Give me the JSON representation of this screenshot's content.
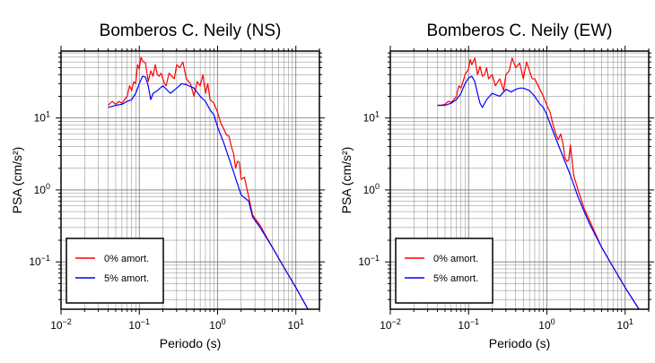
{
  "figure": {
    "background": "#ffffff"
  },
  "chart_data": [
    {
      "type": "line",
      "title": "Bomberos C. Neily (NS)",
      "xlabel": "Periodo (s)",
      "ylabel": "PSA (cm/s²)",
      "xscale": "log",
      "yscale": "log",
      "xlim": [
        0.01,
        20
      ],
      "ylim": [
        0.022,
        85
      ],
      "grid": true,
      "legend": "bottom-left",
      "xticks": [
        {
          "value": 0.01,
          "base": "10",
          "exp": "−2"
        },
        {
          "value": 0.1,
          "base": "10",
          "exp": "−1"
        },
        {
          "value": 1,
          "base": "10",
          "exp": "0"
        },
        {
          "value": 10,
          "base": "10",
          "exp": "1"
        }
      ],
      "yticks": [
        {
          "value": 0.1,
          "base": "10",
          "exp": "−1"
        },
        {
          "value": 1,
          "base": "10",
          "exp": "0"
        },
        {
          "value": 10,
          "base": "10",
          "exp": "1"
        }
      ],
      "series": [
        {
          "name": "0% amort.",
          "color": "#ff0000",
          "x": [
            0.04,
            0.045,
            0.05,
            0.055,
            0.06,
            0.065,
            0.07,
            0.075,
            0.08,
            0.085,
            0.09,
            0.095,
            0.1,
            0.105,
            0.11,
            0.12,
            0.13,
            0.14,
            0.15,
            0.16,
            0.17,
            0.18,
            0.19,
            0.2,
            0.21,
            0.22,
            0.24,
            0.26,
            0.28,
            0.3,
            0.33,
            0.36,
            0.4,
            0.45,
            0.5,
            0.55,
            0.6,
            0.65,
            0.7,
            0.75,
            0.8,
            0.9,
            1.0,
            1.1,
            1.2,
            1.3,
            1.4,
            1.5,
            1.6,
            1.7,
            1.8,
            1.9,
            2.0,
            2.2,
            2.5,
            2.8,
            3.5,
            5,
            7,
            10,
            15
          ],
          "values": [
            15,
            17,
            15.5,
            17,
            16,
            18,
            20,
            28,
            24,
            32,
            30,
            55,
            48,
            70,
            62,
            58,
            32,
            45,
            38,
            55,
            40,
            38,
            42,
            35,
            30,
            28,
            42,
            38,
            35,
            55,
            50,
            60,
            35,
            30,
            20,
            32,
            28,
            40,
            22,
            30,
            18,
            16,
            12,
            8.5,
            7,
            5.8,
            5.6,
            4,
            3.2,
            2,
            2.5,
            2.4,
            1.4,
            1.5,
            0.8,
            0.45,
            0.32,
            0.16,
            0.085,
            0.044,
            0.02
          ]
        },
        {
          "name": "5% amort.",
          "color": "#0000ff",
          "x": [
            0.04,
            0.05,
            0.06,
            0.07,
            0.08,
            0.09,
            0.1,
            0.11,
            0.12,
            0.13,
            0.14,
            0.15,
            0.17,
            0.2,
            0.25,
            0.3,
            0.35,
            0.4,
            0.5,
            0.6,
            0.7,
            0.8,
            0.9,
            1.0,
            1.2,
            1.5,
            2.0,
            2.5,
            2.8,
            3.5,
            5,
            7,
            10,
            15
          ],
          "values": [
            14,
            15,
            15.5,
            17,
            18,
            22,
            30,
            38,
            37,
            28,
            18,
            22,
            24,
            28,
            22,
            26,
            30,
            29,
            26,
            20,
            17,
            13,
            11,
            7.5,
            4.5,
            2.2,
            0.85,
            0.7,
            0.42,
            0.3,
            0.16,
            0.085,
            0.044,
            0.02
          ]
        }
      ]
    },
    {
      "type": "line",
      "title": "Bomberos C. Neily (EW)",
      "xlabel": "Periodo (s)",
      "ylabel": "PSA (cm/s²)",
      "xscale": "log",
      "yscale": "log",
      "xlim": [
        0.01,
        20
      ],
      "ylim": [
        0.022,
        85
      ],
      "grid": true,
      "legend": "bottom-left",
      "xticks": [
        {
          "value": 0.01,
          "base": "10",
          "exp": "−2"
        },
        {
          "value": 0.1,
          "base": "10",
          "exp": "−1"
        },
        {
          "value": 1,
          "base": "10",
          "exp": "0"
        },
        {
          "value": 10,
          "base": "10",
          "exp": "1"
        }
      ],
      "yticks": [
        {
          "value": 0.1,
          "base": "10",
          "exp": "−1"
        },
        {
          "value": 1,
          "base": "10",
          "exp": "0"
        },
        {
          "value": 10,
          "base": "10",
          "exp": "1"
        }
      ],
      "series": [
        {
          "name": "0% amort.",
          "color": "#ff0000",
          "x": [
            0.04,
            0.045,
            0.05,
            0.055,
            0.06,
            0.065,
            0.07,
            0.075,
            0.08,
            0.085,
            0.09,
            0.1,
            0.105,
            0.11,
            0.12,
            0.13,
            0.14,
            0.15,
            0.16,
            0.17,
            0.18,
            0.2,
            0.22,
            0.25,
            0.28,
            0.3,
            0.33,
            0.36,
            0.4,
            0.45,
            0.5,
            0.55,
            0.6,
            0.65,
            0.7,
            0.75,
            0.8,
            0.9,
            1.0,
            1.1,
            1.2,
            1.3,
            1.4,
            1.5,
            1.6,
            1.7,
            1.8,
            1.9,
            2.0,
            2.2,
            2.5,
            3.0,
            5,
            7,
            10,
            15
          ],
          "values": [
            15,
            15,
            15.5,
            17,
            16.5,
            18,
            20,
            28,
            26,
            32,
            40,
            48,
            65,
            55,
            68,
            40,
            52,
            38,
            40,
            50,
            35,
            40,
            28,
            35,
            24,
            40,
            45,
            68,
            50,
            58,
            35,
            60,
            45,
            35,
            35,
            30,
            26,
            20,
            15,
            12,
            8,
            6,
            5,
            6,
            4.5,
            2.8,
            2.5,
            2.6,
            4.2,
            1.6,
            1.0,
            0.55,
            0.16,
            0.085,
            0.044,
            0.022
          ]
        },
        {
          "name": "5% amort.",
          "color": "#0000ff",
          "x": [
            0.04,
            0.05,
            0.06,
            0.07,
            0.08,
            0.09,
            0.1,
            0.11,
            0.12,
            0.13,
            0.14,
            0.15,
            0.17,
            0.2,
            0.25,
            0.3,
            0.35,
            0.4,
            0.45,
            0.5,
            0.6,
            0.7,
            0.8,
            0.9,
            1.0,
            1.2,
            1.5,
            2.0,
            2.5,
            3.0,
            3.5,
            5,
            7,
            10,
            15
          ],
          "values": [
            15,
            15,
            16,
            18,
            22,
            30,
            36,
            38,
            32,
            22,
            16,
            14,
            18,
            22,
            20,
            25,
            23,
            25,
            26,
            26,
            24,
            20,
            16,
            14,
            11,
            6.5,
            3.5,
            1.6,
            0.8,
            0.5,
            0.34,
            0.16,
            0.085,
            0.044,
            0.022
          ]
        }
      ]
    }
  ]
}
